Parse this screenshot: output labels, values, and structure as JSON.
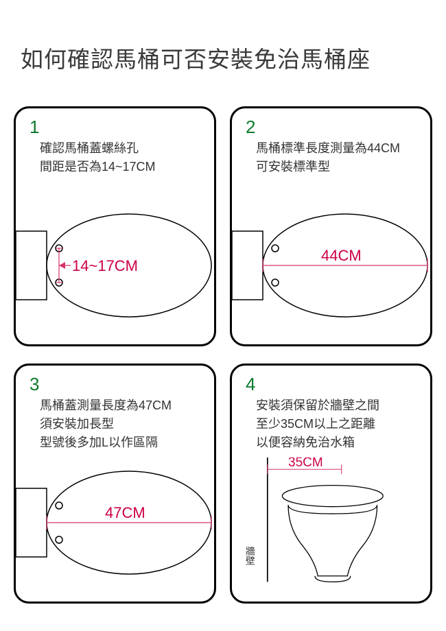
{
  "title": "如何確認馬桶可否安裝免治馬桶座",
  "panels": [
    {
      "num": "1",
      "text": "確認馬桶蓋螺絲孔<br>間距是否為14~17CM",
      "measure": "14~17CM",
      "drawing": "seat_holes",
      "measure_color": "#cc0044",
      "line_color": "#d6336c"
    },
    {
      "num": "2",
      "text": "馬桶標準長度測量為44CM<br>可安裝標準型",
      "measure": "44CM",
      "drawing": "seat_length",
      "measure_color": "#cc0044",
      "line_color": "#d6336c"
    },
    {
      "num": "3",
      "text": "馬桶蓋測量長度為47CM<br>須安裝加長型<br>型號後多加L以作區隔",
      "measure": "47CM",
      "drawing": "seat_length",
      "measure_color": "#cc0044",
      "line_color": "#d6336c"
    },
    {
      "num": "4",
      "text": "安裝須保留於牆壁之間<br>至少35CM以上之距離<br>以便容納免治水箱",
      "measure": "35CM",
      "drawing": "wall_clearance",
      "wall_label": "牆壁",
      "measure_color": "#cc0044",
      "line_color": "#d6336c"
    }
  ],
  "style": {
    "panel_border": "#000000",
    "panel_radius": 22,
    "num_color": "#0d7a2e",
    "text_color": "#333333",
    "outline_color": "#000000",
    "outline_width": 1.5
  }
}
